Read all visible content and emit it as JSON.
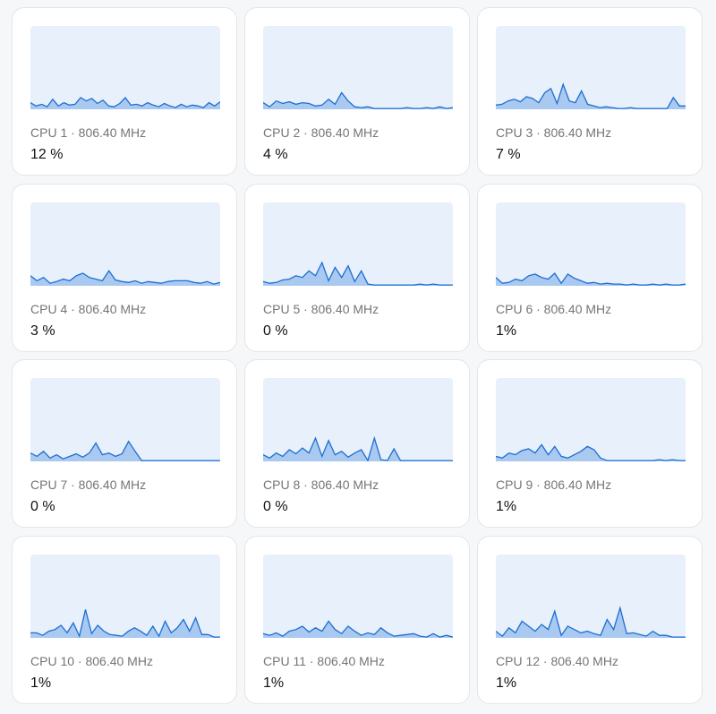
{
  "ylim": [
    0,
    100
  ],
  "cards": [
    {
      "label": "CPU 1 · 806.40 MHz",
      "usage": "12 %",
      "history": [
        8,
        4,
        6,
        3,
        12,
        4,
        8,
        5,
        6,
        14,
        10,
        13,
        7,
        11,
        4,
        3,
        7,
        14,
        5,
        6,
        4,
        8,
        5,
        3,
        7,
        4,
        2,
        6,
        3,
        5,
        4,
        2,
        8,
        4,
        9
      ]
    },
    {
      "label": "CPU 2 · 806.40 MHz",
      "usage": "4 %",
      "history": [
        8,
        3,
        10,
        7,
        9,
        6,
        8,
        7,
        4,
        5,
        12,
        6,
        20,
        10,
        3,
        2,
        3,
        1,
        1,
        1,
        1,
        1,
        2,
        1,
        1,
        2,
        1,
        3,
        1,
        2
      ]
    },
    {
      "label": "CPU 3 · 806.40 MHz",
      "usage": "7 %",
      "history": [
        5,
        6,
        10,
        12,
        9,
        15,
        13,
        8,
        20,
        25,
        7,
        30,
        10,
        8,
        22,
        6,
        4,
        2,
        3,
        2,
        1,
        1,
        2,
        1,
        1,
        1,
        1,
        1,
        1,
        14,
        4,
        4
      ]
    },
    {
      "label": "CPU 4 · 806.40 MHz",
      "usage": "3 %",
      "history": [
        12,
        6,
        10,
        3,
        5,
        8,
        6,
        12,
        15,
        10,
        8,
        6,
        18,
        7,
        5,
        4,
        6,
        3,
        5,
        4,
        3,
        5,
        6,
        6,
        6,
        4,
        3,
        5,
        2,
        4
      ]
    },
    {
      "label": "CPU 5 · 806.40 MHz",
      "usage": "0 %",
      "history": [
        5,
        3,
        4,
        7,
        8,
        12,
        10,
        18,
        12,
        28,
        6,
        22,
        10,
        24,
        5,
        18,
        2,
        1,
        1,
        1,
        1,
        1,
        1,
        1,
        2,
        1,
        2,
        1,
        1,
        1
      ]
    },
    {
      "label": "CPU 6 · 806.40 MHz",
      "usage": "1%",
      "history": [
        10,
        3,
        4,
        8,
        6,
        12,
        14,
        10,
        8,
        15,
        3,
        14,
        9,
        6,
        3,
        4,
        2,
        3,
        2,
        2,
        1,
        2,
        1,
        1,
        2,
        1,
        2,
        1,
        1,
        2
      ]
    },
    {
      "label": "CPU 7 · 806.40 MHz",
      "usage": "0 %",
      "history": [
        10,
        6,
        12,
        4,
        8,
        3,
        6,
        9,
        5,
        10,
        22,
        8,
        10,
        6,
        9,
        24,
        12,
        1,
        1,
        1,
        1,
        1,
        1,
        1,
        1,
        1,
        1,
        1,
        1,
        1
      ]
    },
    {
      "label": "CPU 8 · 806.40 MHz",
      "usage": "0 %",
      "history": [
        8,
        4,
        10,
        6,
        14,
        9,
        16,
        10,
        28,
        6,
        25,
        8,
        12,
        5,
        10,
        14,
        1,
        28,
        2,
        1,
        15,
        1,
        1,
        1,
        1,
        1,
        1,
        1,
        1,
        1
      ]
    },
    {
      "label": "CPU 9 · 806.40 MHz",
      "usage": "1%",
      "history": [
        6,
        4,
        10,
        8,
        13,
        15,
        10,
        20,
        8,
        18,
        6,
        4,
        8,
        12,
        18,
        14,
        4,
        1,
        1,
        1,
        1,
        1,
        1,
        1,
        1,
        2,
        1,
        2,
        1,
        1
      ]
    },
    {
      "label": "CPU 10 · 806.40 MHz",
      "usage": "1%",
      "history": [
        6,
        6,
        3,
        8,
        10,
        15,
        6,
        18,
        2,
        34,
        5,
        15,
        8,
        4,
        3,
        2,
        8,
        12,
        8,
        3,
        14,
        2,
        20,
        6,
        12,
        22,
        8,
        24,
        4,
        4,
        1,
        1
      ]
    },
    {
      "label": "CPU 11 · 806.40 MHz",
      "usage": "1%",
      "history": [
        5,
        3,
        6,
        2,
        8,
        10,
        14,
        7,
        12,
        8,
        20,
        10,
        5,
        14,
        8,
        3,
        6,
        4,
        12,
        6,
        2,
        3,
        4,
        5,
        2,
        1,
        5,
        1,
        3,
        1
      ]
    },
    {
      "label": "CPU 12 · 806.40 MHz",
      "usage": "1%",
      "history": [
        8,
        2,
        12,
        6,
        20,
        14,
        8,
        16,
        10,
        32,
        3,
        14,
        10,
        6,
        8,
        5,
        3,
        22,
        10,
        36,
        5,
        6,
        4,
        2,
        8,
        3,
        3,
        1,
        1,
        1
      ]
    }
  ]
}
